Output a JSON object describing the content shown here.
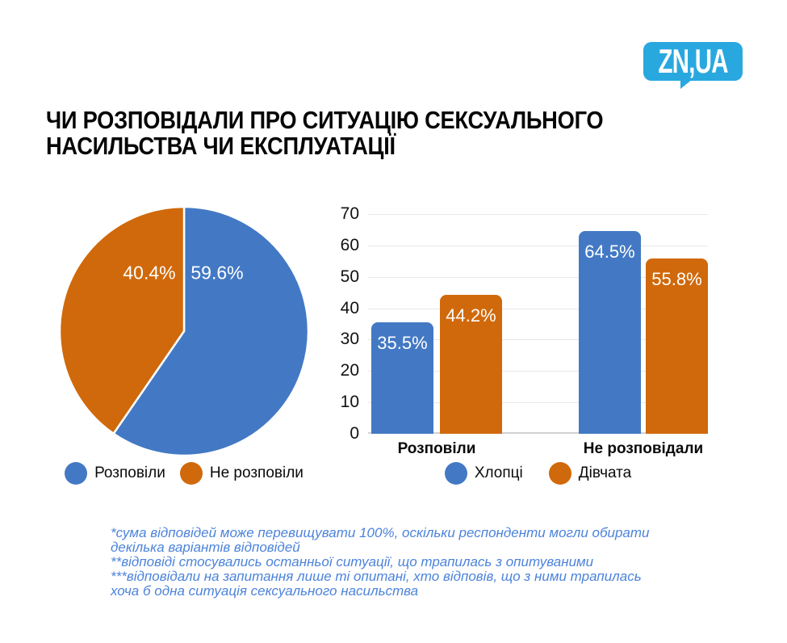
{
  "logo": {
    "text": "ZN,UA"
  },
  "title": {
    "line1": "ЧИ РОЗПОВІДАЛИ ПРО СИТУАЦІЮ СЕКСУАЛЬНОГО",
    "line2": "НАСИЛЬСТВА ЧИ ЕКСПЛУАТАЦІЇ"
  },
  "colors": {
    "series_blue": "#4379C4",
    "series_orange": "#D0690B",
    "logo_bg": "#29A8E0",
    "footnote_text": "#4C83DB",
    "gridline": "#E8E8E8",
    "axis_line": "#D2D2D2"
  },
  "chart_data": [
    {
      "type": "pie",
      "labels": [
        "Розповіли",
        "Не розповіли"
      ],
      "values": [
        59.6,
        40.4
      ],
      "value_labels": [
        "59.6%",
        "40.4%"
      ],
      "colors": [
        "#4379C4",
        "#D0690B"
      ],
      "start_angle_deg": 0,
      "direction": "clockwise",
      "legend_position": "bottom"
    },
    {
      "type": "bar",
      "categories": [
        "Розповіли",
        "Не розповідали"
      ],
      "series": [
        {
          "name": "Хлопці",
          "color": "#4379C4",
          "values": [
            35.5,
            64.5
          ],
          "value_labels": [
            "35.5%",
            "64.5%"
          ]
        },
        {
          "name": "Дівчата",
          "color": "#D0690B",
          "values": [
            44.2,
            55.8
          ],
          "value_labels": [
            "44.2%",
            "55.8%"
          ]
        }
      ],
      "ylim": [
        0,
        70
      ],
      "yticks": [
        0,
        10,
        20,
        30,
        40,
        50,
        60,
        70
      ],
      "grid": true,
      "legend_position": "bottom"
    }
  ],
  "footnotes": [
    "*сума відповідей може перевищувати 100%, оскільки респонденти могли обирати декілька варіантів відповідей",
    "**відповіді стосувались останньої ситуації, що трапилась з опитуваними",
    "***відповідали на запитання лише ті опитані, хто відповів, що з ними трапилась хоча б одна ситуація сексуального насильства"
  ]
}
